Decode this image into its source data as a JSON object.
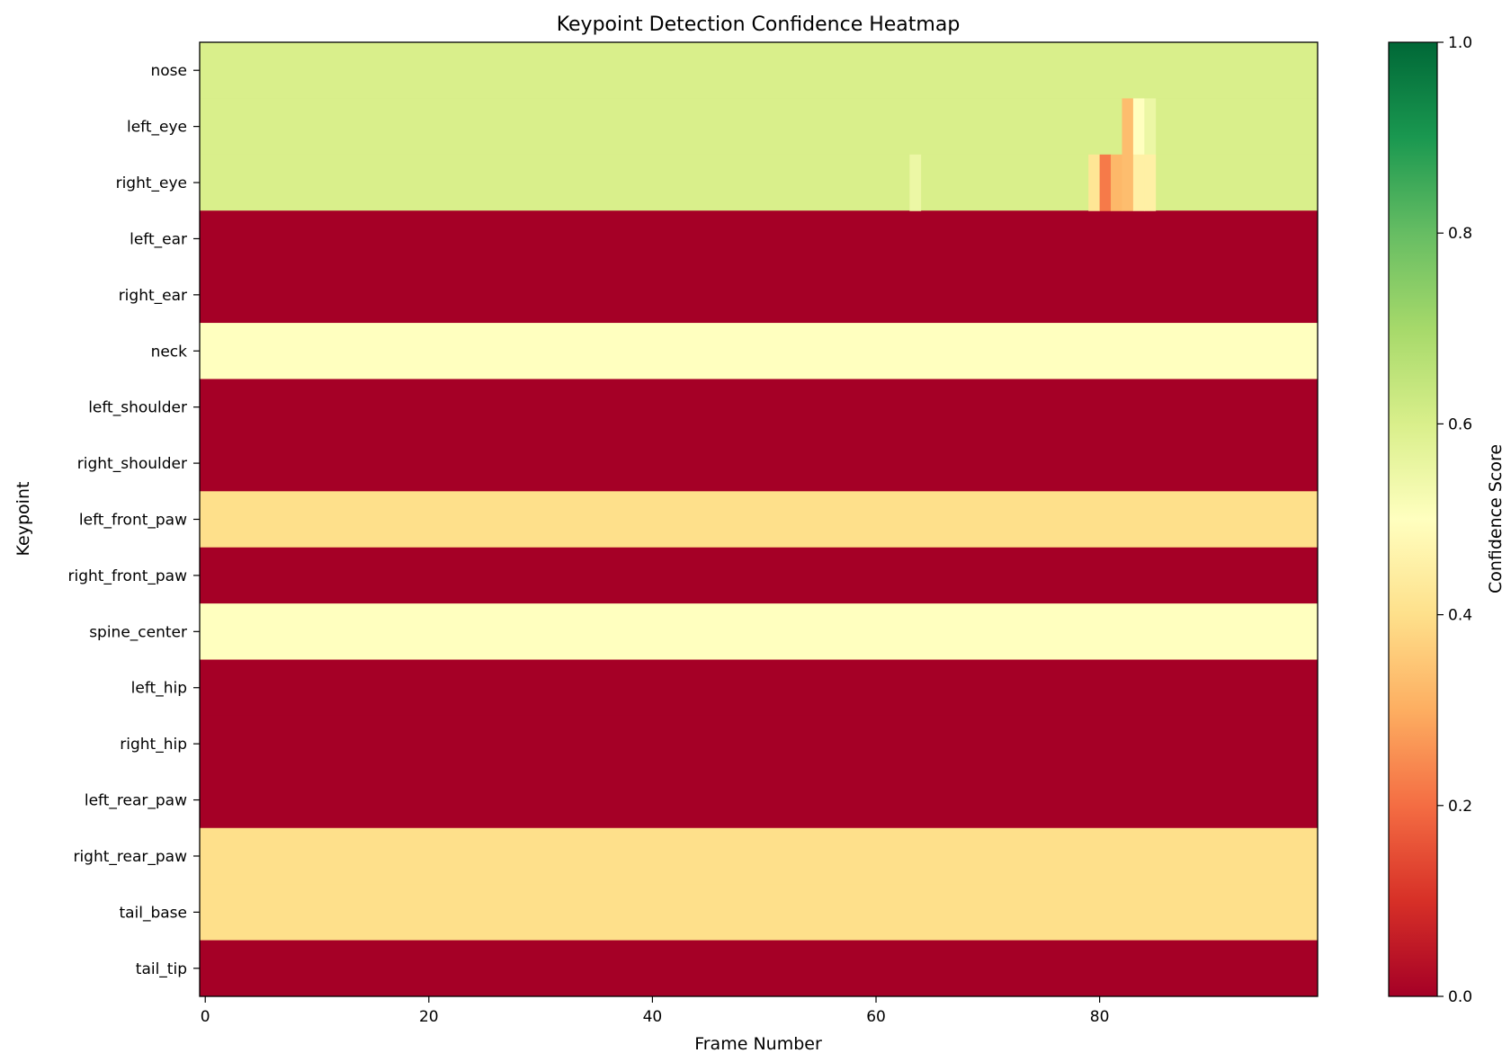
{
  "chart_data": {
    "type": "heatmap",
    "title": "Keypoint Detection Confidence Heatmap",
    "xlabel": "Frame Number",
    "ylabel": "Keypoint",
    "colorbar_label": "Confidence Score",
    "colormap": "RdYlGn",
    "color_range": [
      0.0,
      1.0
    ],
    "n_frames": 100,
    "x_ticks": [
      0,
      20,
      40,
      60,
      80
    ],
    "colorbar_ticks": [
      "0.0",
      "0.2",
      "0.4",
      "0.6",
      "0.8",
      "1.0"
    ],
    "keypoints": [
      "nose",
      "left_eye",
      "right_eye",
      "left_ear",
      "right_ear",
      "neck",
      "left_shoulder",
      "right_shoulder",
      "left_front_paw",
      "right_front_paw",
      "spine_center",
      "left_hip",
      "right_hip",
      "left_rear_paw",
      "right_rear_paw",
      "tail_base",
      "tail_tip"
    ],
    "base_values": [
      0.6,
      0.6,
      0.6,
      0.0,
      0.0,
      0.5,
      0.0,
      0.0,
      0.4,
      0.0,
      0.5,
      0.0,
      0.0,
      0.0,
      0.4,
      0.4,
      0.0
    ],
    "overrides": [
      {
        "keypoint": "left_eye",
        "frame": 83,
        "value": 0.33
      },
      {
        "keypoint": "left_eye",
        "frame": 84,
        "value": 0.5
      },
      {
        "keypoint": "left_eye",
        "frame": 85,
        "value": 0.55
      },
      {
        "keypoint": "right_eye",
        "frame": 64,
        "value": 0.55
      },
      {
        "keypoint": "right_eye",
        "frame": 80,
        "value": 0.42
      },
      {
        "keypoint": "right_eye",
        "frame": 81,
        "value": 0.22
      },
      {
        "keypoint": "right_eye",
        "frame": 82,
        "value": 0.32
      },
      {
        "keypoint": "right_eye",
        "frame": 83,
        "value": 0.33
      },
      {
        "keypoint": "right_eye",
        "frame": 84,
        "value": 0.45
      },
      {
        "keypoint": "right_eye",
        "frame": 85,
        "value": 0.45
      }
    ]
  }
}
